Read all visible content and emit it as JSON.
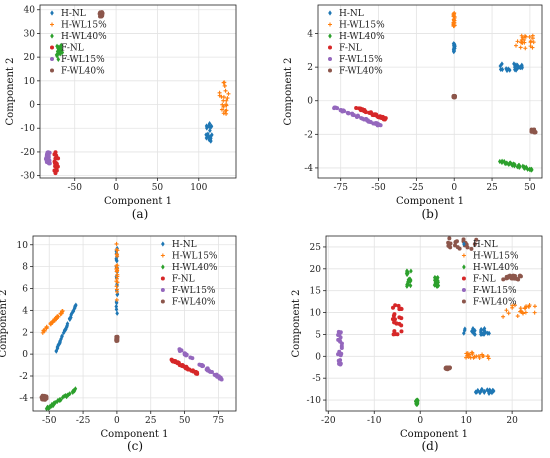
{
  "legend_labels": [
    "H-NL",
    "H-WL15%",
    "H-WL40%",
    "F-NL",
    "F-WL15%",
    "F-WL40%"
  ],
  "series_colors": [
    "#1f77b4",
    "#ff7f0e",
    "#2ca02c",
    "#d62728",
    "#9467bd",
    "#8c564b"
  ],
  "series_markers": [
    "diamond",
    "plus",
    "diamond",
    "circle",
    "circle",
    "circle"
  ],
  "chart_data": [
    {
      "type": "scatter",
      "caption": "(a)",
      "xlabel": "Component 1",
      "ylabel": "Component 2",
      "xlim": [
        -92,
        145
      ],
      "ylim": [
        -31,
        42
      ],
      "xticks": [
        -50,
        0,
        50,
        100
      ],
      "yticks": [
        -30,
        -20,
        -10,
        0,
        10,
        20,
        30,
        40
      ],
      "grid": true,
      "legend_position": "top-left",
      "series": [
        {
          "name": "H-NL",
          "clusters": [
            {
              "x": [
                108,
                116
              ],
              "y": [
                -17,
                -8
              ]
            }
          ]
        },
        {
          "name": "H-WL15%",
          "clusters": [
            {
              "x": [
                125,
                137
              ],
              "y": [
                -4,
                10
              ]
            }
          ]
        },
        {
          "name": "H-WL40%",
          "clusters": [
            {
              "x": [
                -72,
                -65
              ],
              "y": [
                19,
                25
              ]
            }
          ]
        },
        {
          "name": "F-NL",
          "clusters": [
            {
              "x": [
                -75,
                -70
              ],
              "y": [
                -29,
                -20
              ]
            }
          ]
        },
        {
          "name": "F-WL15%",
          "clusters": [
            {
              "x": [
                -85,
                -80
              ],
              "y": [
                -25,
                -20
              ]
            }
          ]
        },
        {
          "name": "F-WL40%",
          "clusters": [
            {
              "x": [
                -20,
                -16
              ],
              "y": [
                37,
                39
              ]
            }
          ]
        }
      ]
    },
    {
      "type": "scatter",
      "caption": "(b)",
      "xlabel": "Component 1",
      "ylabel": "Component 2",
      "xlim": [
        -90,
        58
      ],
      "ylim": [
        -4.6,
        5.7
      ],
      "xticks": [
        -75,
        -50,
        -25,
        0,
        25,
        50
      ],
      "yticks": [
        -4,
        -2,
        0,
        2,
        4
      ],
      "grid": true,
      "legend_position": "top-left",
      "series": [
        {
          "name": "H-NL",
          "clusters": [
            {
              "x": [
                -0.5,
                0.5
              ],
              "y": [
                2.9,
                3.4
              ]
            },
            {
              "x": [
                30,
                45
              ],
              "y": [
                1.8,
                2.2
              ]
            }
          ]
        },
        {
          "name": "H-WL15%",
          "clusters": [
            {
              "x": [
                -0.5,
                0.5
              ],
              "y": [
                4.4,
                5.3
              ]
            },
            {
              "x": [
                40,
                53
              ],
              "y": [
                3.1,
                3.9
              ]
            }
          ]
        },
        {
          "name": "H-WL40%",
          "clusters": [
            {
              "x": [
                30,
                52
              ],
              "y": [
                -3.6,
                -4.1
              ],
              "line": true
            }
          ]
        },
        {
          "name": "F-NL",
          "clusters": [
            {
              "x": [
                -65,
                -45
              ],
              "y": [
                -0.4,
                -1.1
              ],
              "line": true
            }
          ]
        },
        {
          "name": "F-WL15%",
          "clusters": [
            {
              "x": [
                -82,
                -48
              ],
              "y": [
                -0.3,
                -1.5
              ],
              "line": true
            }
          ]
        },
        {
          "name": "F-WL40%",
          "clusters": [
            {
              "x": [
                -0.5,
                0.5
              ],
              "y": [
                0.2,
                0.3
              ]
            },
            {
              "x": [
                51,
                54
              ],
              "y": [
                -1.7,
                -1.9
              ]
            }
          ]
        }
      ]
    },
    {
      "type": "scatter",
      "caption": "(c)",
      "xlabel": "Component 1",
      "ylabel": "Component 2",
      "xlim": [
        -62,
        88
      ],
      "ylim": [
        -5.2,
        10.8
      ],
      "xticks": [
        -50,
        -25,
        0,
        25,
        50,
        75
      ],
      "yticks": [
        -4,
        -2,
        0,
        2,
        4,
        6,
        8,
        10
      ],
      "grid": true,
      "legend_position": "top-right",
      "series": [
        {
          "name": "H-NL",
          "clusters": [
            {
              "x": [
                -45,
                -30
              ],
              "y": [
                0.3,
                4.6
              ],
              "line": true
            },
            {
              "x": [
                -0.5,
                0.5
              ],
              "y": [
                3.6,
                10.2
              ]
            }
          ]
        },
        {
          "name": "H-WL15%",
          "clusters": [
            {
              "x": [
                -55,
                -40
              ],
              "y": [
                2.0,
                3.9
              ],
              "line": true
            },
            {
              "x": [
                -0.5,
                0.5
              ],
              "y": [
                4.5,
                10.4
              ]
            }
          ]
        },
        {
          "name": "H-WL40%",
          "clusters": [
            {
              "x": [
                -52,
                -30
              ],
              "y": [
                -5.0,
                -3.2
              ],
              "line": true
            }
          ]
        },
        {
          "name": "F-NL",
          "clusters": [
            {
              "x": [
                40,
                60
              ],
              "y": [
                -0.5,
                -1.8
              ],
              "line": true
            }
          ]
        },
        {
          "name": "F-WL15%",
          "clusters": [
            {
              "x": [
                45,
                80
              ],
              "y": [
                0.5,
                -2.5
              ],
              "line": true
            }
          ]
        },
        {
          "name": "F-WL40%",
          "clusters": [
            {
              "x": [
                -0.5,
                0.5
              ],
              "y": [
                1.2,
                1.6
              ]
            },
            {
              "x": [
                -56,
                -52
              ],
              "y": [
                -3.8,
                -4.2
              ]
            }
          ]
        }
      ]
    },
    {
      "type": "scatter",
      "caption": "(d)",
      "xlabel": "Component 1",
      "ylabel": "Component 2",
      "xlim": [
        -20.5,
        26.5
      ],
      "ylim": [
        -12.5,
        27.5
      ],
      "xticks": [
        -20,
        -10,
        0,
        10,
        20
      ],
      "yticks": [
        -10,
        -5,
        0,
        5,
        10,
        15,
        20,
        25
      ],
      "grid": true,
      "legend_position": "top-right",
      "series": [
        {
          "name": "H-NL",
          "clusters": [
            {
              "x": [
                9,
                15
              ],
              "y": [
                5,
                6.5
              ]
            },
            {
              "x": [
                12,
                16
              ],
              "y": [
                -7.5,
                -8.5
              ]
            }
          ]
        },
        {
          "name": "H-WL15%",
          "clusters": [
            {
              "x": [
                18,
                25
              ],
              "y": [
                9,
                12
              ]
            },
            {
              "x": [
                9,
                15
              ],
              "y": [
                -0.5,
                1
              ]
            }
          ]
        },
        {
          "name": "H-WL40%",
          "clusters": [
            {
              "x": [
                -3,
                -2
              ],
              "y": [
                16,
                20
              ]
            },
            {
              "x": [
                3,
                4
              ],
              "y": [
                16,
                18
              ]
            },
            {
              "x": [
                -1,
                -0.5
              ],
              "y": [
                -10,
                -11
              ]
            }
          ]
        },
        {
          "name": "F-NL",
          "clusters": [
            {
              "x": [
                -6,
                -4
              ],
              "y": [
                5,
                12
              ]
            }
          ]
        },
        {
          "name": "F-WL15%",
          "clusters": [
            {
              "x": [
                -18,
                -17
              ],
              "y": [
                -2,
                6
              ]
            }
          ]
        },
        {
          "name": "F-WL40%",
          "clusters": [
            {
              "x": [
                6,
                13
              ],
              "y": [
                24.5,
                27
              ]
            },
            {
              "x": [
                18,
                22
              ],
              "y": [
                17.5,
                18.5
              ]
            },
            {
              "x": [
                5.5,
                6.5
              ],
              "y": [
                -3,
                -2.5
              ]
            }
          ]
        }
      ]
    }
  ]
}
